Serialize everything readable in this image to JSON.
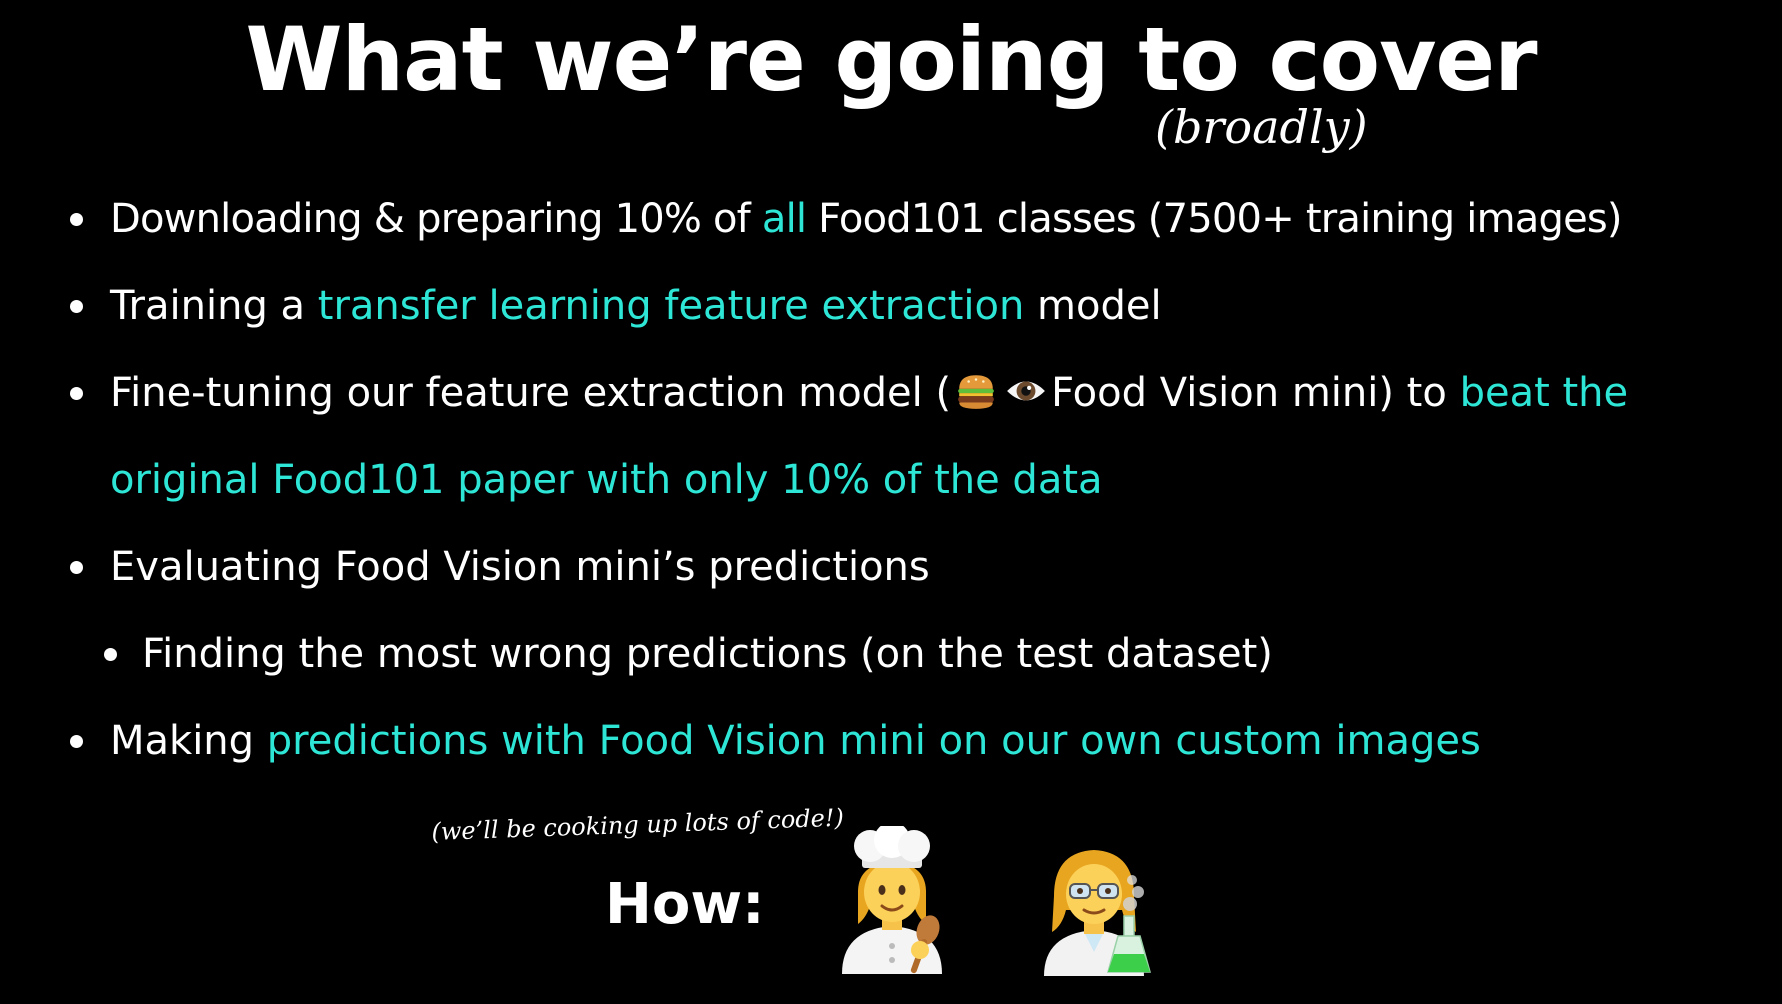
{
  "title": "What we’re going to cover",
  "subtitle": "(broadly)",
  "bullets": {
    "b1": {
      "pre": "Downloading & preparing 10% of ",
      "hl": "all",
      "post": " Food101 classes (7500+  training images)"
    },
    "b2": {
      "pre": "Training a ",
      "hl": "transfer learning feature extraction",
      "post": " model"
    },
    "b3": {
      "pre": "Fine-tuning our feature extraction model (",
      "mid": "Food Vision mini) to ",
      "hl": "beat the",
      "hl2": "original Food101 paper with only 10% of the data"
    },
    "b4": {
      "text": "Evaluating Food Vision mini’s predictions"
    },
    "b5": {
      "text": "Finding the most wrong predictions (on the test dataset)"
    },
    "b6": {
      "pre": "Making ",
      "hl": "predictions with Food Vision mini on our own custom images"
    }
  },
  "note": "(we’ll be cooking up lots of code!)",
  "how": "How:",
  "icons": {
    "burger": "burger-emoji-icon",
    "eye": "eye-emoji-icon",
    "chef": "woman-cook-emoji-icon",
    "scientist": "woman-scientist-emoji-icon"
  },
  "colors": {
    "background": "#000000",
    "text": "#ffffff",
    "highlight": "#2ee6d6"
  }
}
